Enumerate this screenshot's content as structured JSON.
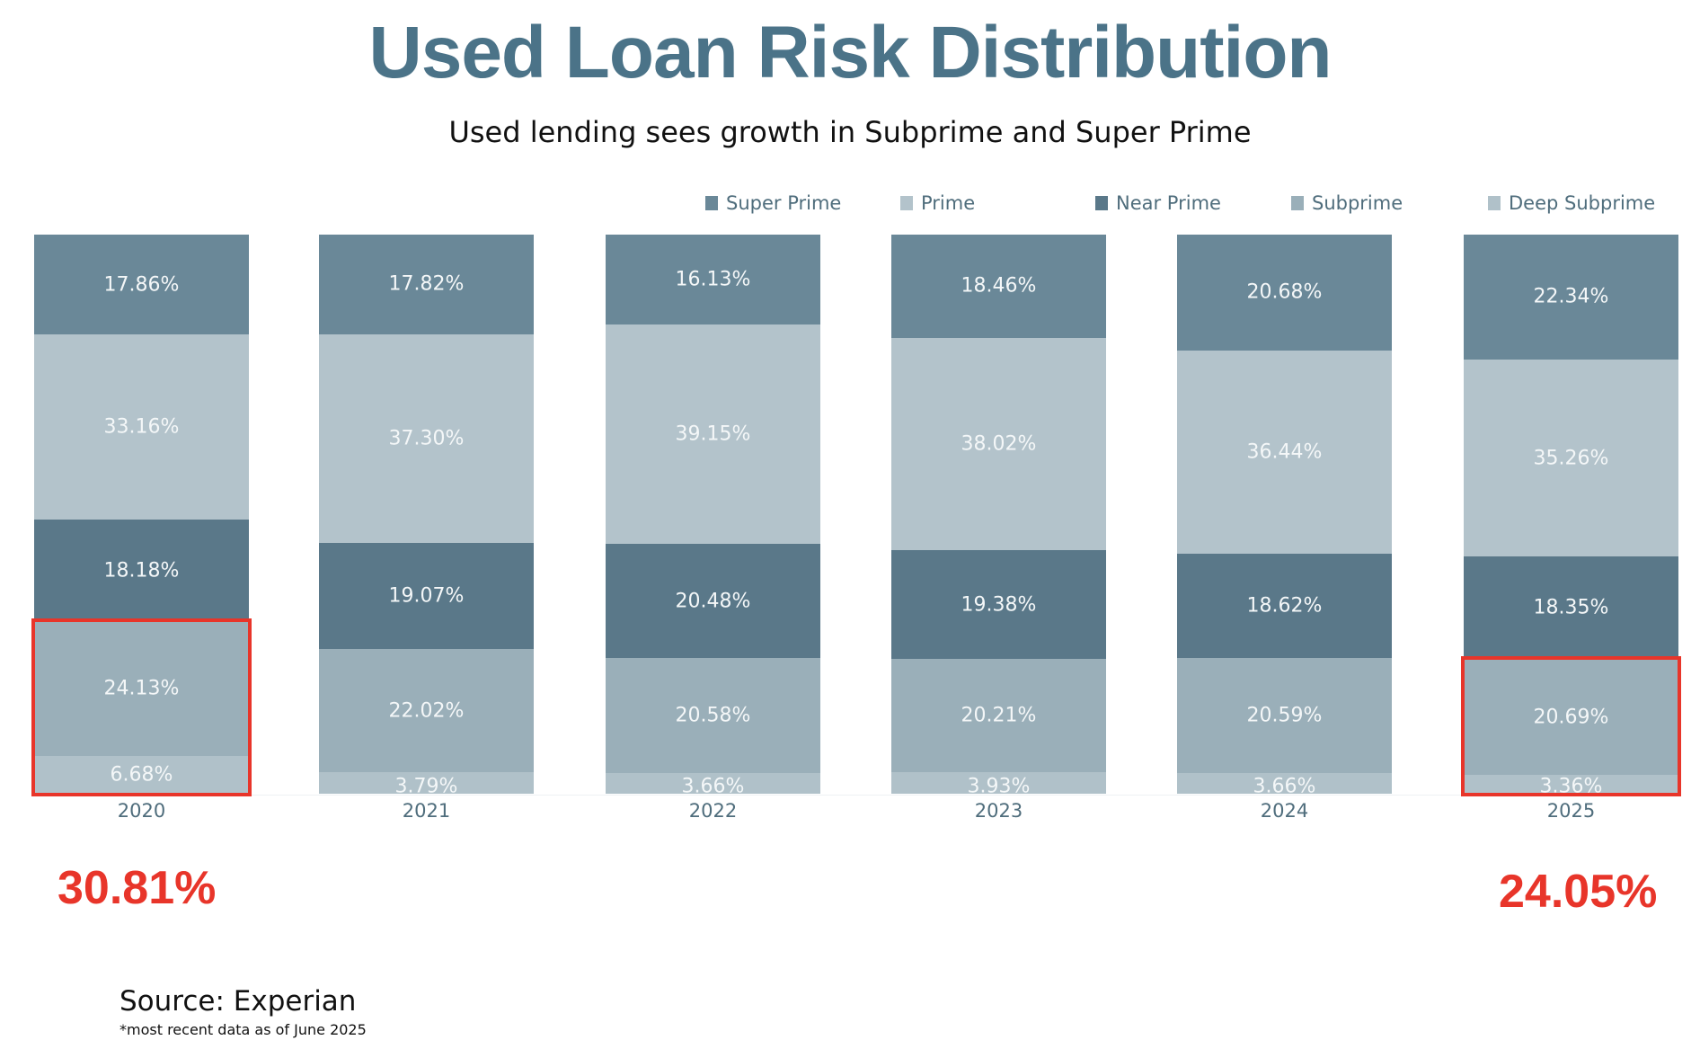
{
  "chart_data": {
    "type": "bar",
    "stacked": true,
    "normalized": true,
    "title": "Used Loan Risk Distribution",
    "subtitle": "Used lending sees growth in Subprime and Super Prime",
    "categories": [
      "2020",
      "2021",
      "2022",
      "2023",
      "2024",
      "2025"
    ],
    "series": [
      {
        "name": "Super Prime",
        "color": "#6a8898",
        "values": [
          17.86,
          17.82,
          16.13,
          18.46,
          20.68,
          22.34
        ],
        "labels": [
          "17.86%",
          "17.82%",
          "16.13%",
          "18.46%",
          "20.68%",
          "22.34%"
        ]
      },
      {
        "name": "Prime",
        "color": "#b3c3cb",
        "values": [
          33.16,
          37.3,
          39.15,
          38.02,
          36.44,
          35.26
        ],
        "labels": [
          "33.16%",
          "37.30%",
          "39.15%",
          "38.02%",
          "36.44%",
          "35.26%"
        ]
      },
      {
        "name": "Near Prime",
        "color": "#5a7889",
        "values": [
          18.18,
          19.07,
          20.48,
          19.38,
          18.62,
          18.35
        ],
        "labels": [
          "18.18%",
          "19.07%",
          "20.48%",
          "19.38%",
          "18.62%",
          "18.35%"
        ]
      },
      {
        "name": "Subprime",
        "color": "#9aafb9",
        "values": [
          24.13,
          22.02,
          20.58,
          20.21,
          20.59,
          20.69
        ],
        "labels": [
          "24.13%",
          "22.02%",
          "20.58%",
          "20.21%",
          "20.59%",
          "20.69%"
        ]
      },
      {
        "name": "Deep Subprime",
        "color": "#b0c1c9",
        "values": [
          6.68,
          3.79,
          3.66,
          3.93,
          3.66,
          3.36
        ],
        "labels": [
          "6.68%",
          "3.79%",
          "3.66%",
          "3.93%",
          "3.66%",
          "3.36%"
        ]
      }
    ],
    "legend_position": "top-right",
    "grid": false,
    "highlights": [
      {
        "category": "2020",
        "series": [
          "Subprime",
          "Deep Subprime"
        ],
        "total": "30.81%"
      },
      {
        "category": "2025",
        "series": [
          "Subprime",
          "Deep Subprime"
        ],
        "total": "24.05%"
      }
    ],
    "highlight_color": "#e8352a",
    "title_color": "#4b7388"
  },
  "footer": {
    "source": "Source: Experian",
    "note": "*most recent data as of June 2025"
  }
}
